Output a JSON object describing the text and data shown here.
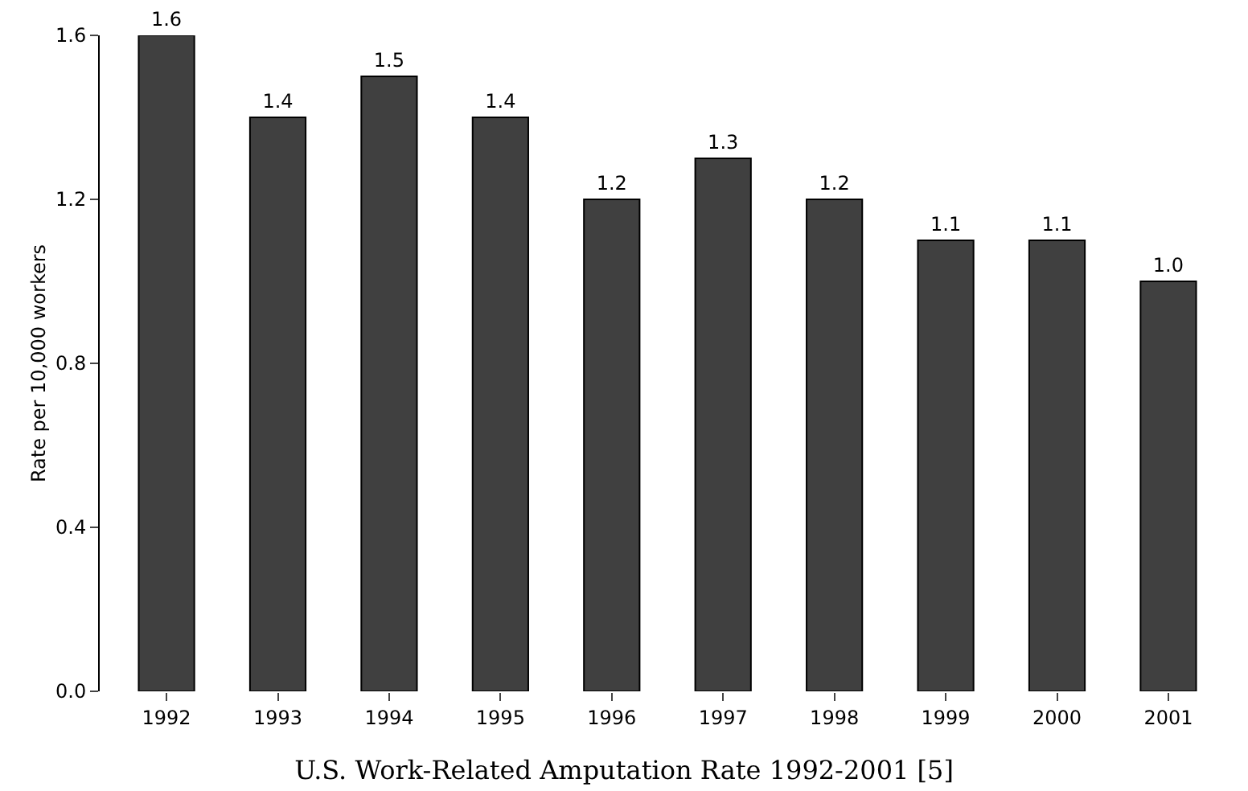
{
  "chart_data": {
    "type": "bar",
    "title": "U.S. Work-Related Amputation Rate 1992-2001 [5]",
    "ylabel": "Rate per 10,000 workers",
    "categories": [
      "1992",
      "1993",
      "1994",
      "1995",
      "1996",
      "1997",
      "1998",
      "1999",
      "2000",
      "2001"
    ],
    "values": [
      1.6,
      1.4,
      1.5,
      1.4,
      1.2,
      1.3,
      1.2,
      1.1,
      1.1,
      1.0
    ],
    "value_labels": [
      "1.6",
      "1.4",
      "1.5",
      "1.4",
      "1.2",
      "1.3",
      "1.2",
      "1.1",
      "1.1",
      "1.0"
    ],
    "color": "#404040",
    "ylim": [
      0,
      1.6
    ],
    "yticks": [
      {
        "value": 0,
        "label": "0.0"
      },
      0.4,
      0.8,
      1.2,
      1.6
    ],
    "grid": false,
    "legend": false
  }
}
